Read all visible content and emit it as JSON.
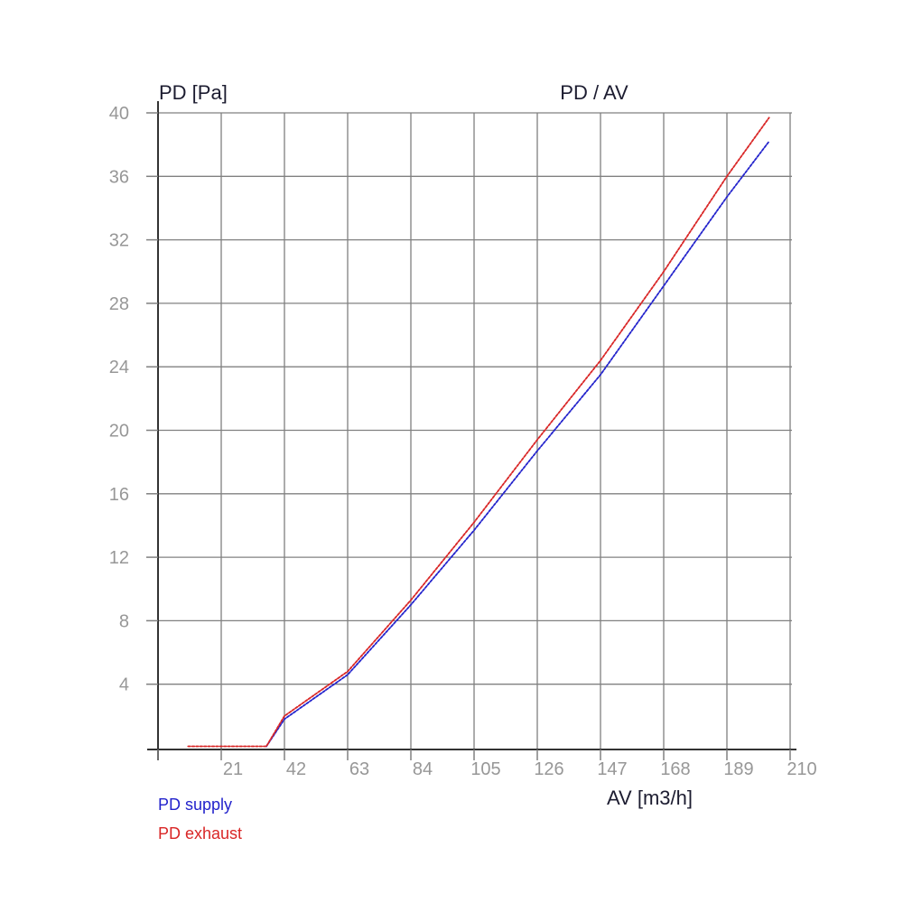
{
  "chart_data": {
    "type": "line",
    "title": "PD / AV",
    "y_axis_label": "PD [Pa]",
    "x_axis_label": "AV [m3/h]",
    "xlabel": "AV [m3/h]",
    "ylabel": "PD [Pa]",
    "xlim": [
      0,
      210
    ],
    "ylim": [
      0,
      40
    ],
    "x_ticks": [
      21,
      42,
      63,
      84,
      105,
      126,
      147,
      168,
      189,
      210
    ],
    "y_ticks": [
      4,
      8,
      12,
      16,
      20,
      24,
      28,
      32,
      36,
      40
    ],
    "grid": true,
    "legend_position": "bottom-left",
    "series": [
      {
        "name": "PD supply",
        "color": "#2323cc",
        "points": [
          [
            36,
            0
          ],
          [
            42,
            1.8
          ],
          [
            63,
            4.6
          ],
          [
            84,
            9.0
          ],
          [
            105,
            13.7
          ],
          [
            126,
            18.7
          ],
          [
            147,
            23.5
          ],
          [
            168,
            29.1
          ],
          [
            189,
            34.7
          ],
          [
            203,
            38.2
          ]
        ]
      },
      {
        "name": "PD exhaust",
        "color": "#d92626",
        "points": [
          [
            10,
            0
          ],
          [
            36,
            0
          ],
          [
            42,
            2.0
          ],
          [
            63,
            4.8
          ],
          [
            84,
            9.3
          ],
          [
            105,
            14.2
          ],
          [
            126,
            19.4
          ],
          [
            147,
            24.4
          ],
          [
            168,
            30.0
          ],
          [
            189,
            36.0
          ],
          [
            203,
            39.7
          ]
        ]
      }
    ]
  },
  "colors": {
    "background": "#ffffff",
    "grid": "#808080",
    "axis": "#333333",
    "tick_label": "#979797",
    "text": "#1c1c30",
    "supply": "#2323cc",
    "exhaust": "#d92626"
  }
}
